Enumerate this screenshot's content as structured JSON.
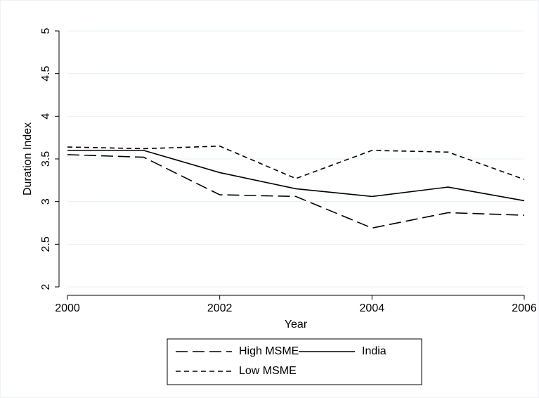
{
  "chart_data": {
    "type": "line",
    "x": [
      2000,
      2001,
      2002,
      2003,
      2004,
      2005,
      2006
    ],
    "xlim": [
      2000,
      2006
    ],
    "xticks": [
      2000,
      2002,
      2004,
      2006
    ],
    "ylim": [
      2,
      5
    ],
    "yticks": [
      2,
      2.5,
      3,
      3.5,
      4,
      4.5,
      5
    ],
    "xlabel": "Year",
    "ylabel": "Duration Index",
    "grid": true,
    "series": [
      {
        "name": "High MSME",
        "color": "#000000",
        "style": "longdash",
        "values": [
          3.55,
          3.52,
          3.08,
          3.06,
          2.69,
          2.87,
          2.84
        ]
      },
      {
        "name": "India",
        "color": "#000000",
        "style": "solid",
        "values": [
          3.6,
          3.6,
          3.34,
          3.15,
          3.06,
          3.17,
          3.01
        ]
      },
      {
        "name": "Low MSME",
        "color": "#000000",
        "style": "shortdash",
        "values": [
          3.64,
          3.62,
          3.65,
          3.27,
          3.6,
          3.58,
          3.26
        ]
      }
    ]
  }
}
